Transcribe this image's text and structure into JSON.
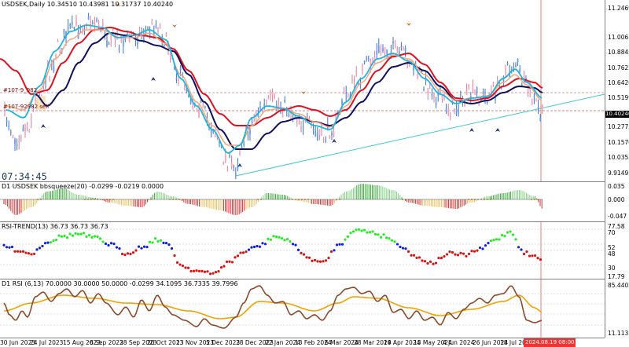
{
  "main": {
    "title": "USDSEK,Daily  10.34510 10.43981 10.31737 10.40240",
    "countdown": "07:34:45",
    "hline1_label": "#107-9_982",
    "hline2_label": "#107-92982 sell",
    "y_ticks": [
      "11.24695",
      "11.00615",
      "10.88435",
      "10.76225",
      "10.64200",
      "10.51990",
      "10.40240",
      "10.27755",
      "10.15700",
      "10.03520",
      "9.91495"
    ],
    "current_price": "10.40240"
  },
  "bbs": {
    "title": "D1 USDSEK bbsqueeze(20) -0.0299 -0.0219 0.0000",
    "y_ticks": [
      "0.035",
      "0.000",
      "-0.047"
    ]
  },
  "rsitrend": {
    "title": "RSI-TREND(13) 36.73 36.73 36.73",
    "y_ticks": [
      "77.58",
      "70",
      "52",
      "48",
      "30",
      "17.79"
    ]
  },
  "rsi": {
    "title": "D1 RSI  (6,13) 70.0000 30.0000 50.0000 -0.0299 34.1095 36.7335 39.7996",
    "y_ticks": [
      "85.4402",
      "11.1131"
    ]
  },
  "x_axis": {
    "labels": [
      "30 Jun 2023",
      "24 Jul 2023",
      "15 Aug 2023",
      "6 Sep 2023",
      "28 Sep 2023",
      "20 Oct 2023",
      "13 Nov 2023",
      "5 Dec 2023",
      "28 Dec 2023",
      "22 Jan 2024",
      "13 Feb 2024",
      "6 Mar 2024",
      "28 Mar 2024",
      "19 Apr 2024",
      "13 May 2024",
      "4 Jun 2024",
      "26 Jun 2024",
      "18 Jul 2024"
    ],
    "current_date": "2024.08.19 08:00"
  },
  "colors": {
    "ma_fast": "#1fb3e0",
    "ma_mid": "#f5a57a",
    "ma_red": "#e01020",
    "ma_navy": "#101060",
    "trendline": "#40c8d0",
    "rsi_line": "#8b4a2b",
    "rsi_signal": "#f2a200"
  }
}
